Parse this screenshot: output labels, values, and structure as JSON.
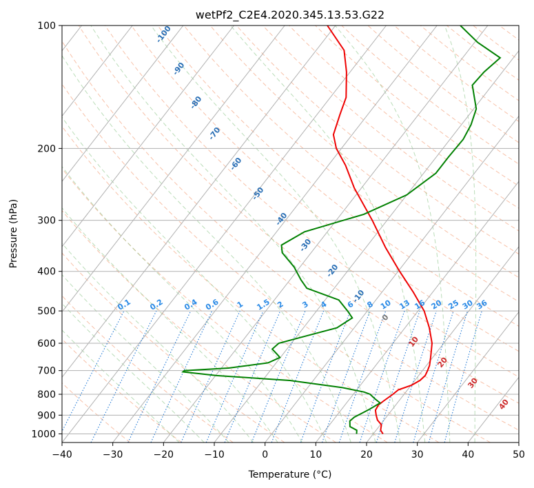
{
  "chart_data": {
    "type": "line",
    "subtype": "skew-t log-p sounding",
    "title": "wetPf2_C2E4.2020.345.13.53.G22",
    "xlabel": "Temperature (°C)",
    "ylabel": "Pressure (hPa)",
    "xlim": [
      -40,
      50
    ],
    "ylim": [
      1050,
      100
    ],
    "y_scale": "log",
    "grid": true,
    "x_ticks": [
      -40,
      -30,
      -20,
      -10,
      0,
      10,
      20,
      30,
      40,
      50
    ],
    "y_ticks": [
      100,
      200,
      300,
      400,
      500,
      600,
      700,
      800,
      900,
      1000
    ],
    "isotherm_labels": [
      -100,
      -90,
      -80,
      -70,
      -60,
      -50,
      -40,
      -30,
      -20,
      -10,
      0,
      10,
      20,
      30,
      40
    ],
    "mixing_ratio_labels": [
      "0.1",
      "0.2",
      "0.4",
      "0.6",
      "1",
      "1.5",
      "2",
      "3",
      "4",
      "6",
      "8",
      "10",
      "13",
      "16",
      "20",
      "25",
      "30",
      "36"
    ],
    "series": [
      {
        "color": "#ee0000",
        "points": [
          [
            1000,
            21.9
          ],
          [
            980,
            20.9
          ],
          [
            950,
            20.2
          ],
          [
            925,
            18.7
          ],
          [
            900,
            17.7
          ],
          [
            875,
            16.8
          ],
          [
            850,
            16.6
          ],
          [
            830,
            17.0
          ],
          [
            800,
            17.8
          ],
          [
            780,
            18.2
          ],
          [
            760,
            20.1
          ],
          [
            740,
            21.0
          ],
          [
            720,
            21.3
          ],
          [
            700,
            21.0
          ],
          [
            680,
            20.6
          ],
          [
            650,
            19.6
          ],
          [
            600,
            17.7
          ],
          [
            550,
            14.8
          ],
          [
            500,
            11.2
          ],
          [
            450,
            6.2
          ],
          [
            400,
            0.3
          ],
          [
            350,
            -6.1
          ],
          [
            300,
            -12.9
          ],
          [
            250,
            -21.4
          ],
          [
            220,
            -26.6
          ],
          [
            200,
            -31.0
          ],
          [
            185,
            -33.7
          ],
          [
            165,
            -35.5
          ],
          [
            150,
            -36.9
          ],
          [
            130,
            -40.7
          ],
          [
            115,
            -44.5
          ],
          [
            100,
            -51.6
          ]
        ]
      },
      {
        "color": "#008000",
        "points": [
          [
            1000,
            16.7
          ],
          [
            980,
            16.2
          ],
          [
            960,
            14.3
          ],
          [
            930,
            13.4
          ],
          [
            910,
            13.7
          ],
          [
            890,
            14.6
          ],
          [
            870,
            15.5
          ],
          [
            840,
            16.6
          ],
          [
            820,
            14.9
          ],
          [
            800,
            13.3
          ],
          [
            790,
            11.8
          ],
          [
            770,
            6.7
          ],
          [
            740,
            -4.6
          ],
          [
            720,
            -19.8
          ],
          [
            705,
            -27.0
          ],
          [
            700,
            -26.9
          ],
          [
            690,
            -18.6
          ],
          [
            670,
            -11.6
          ],
          [
            650,
            -10.1
          ],
          [
            640,
            -11.0
          ],
          [
            620,
            -12.9
          ],
          [
            600,
            -12.5
          ],
          [
            580,
            -9.0
          ],
          [
            550,
            -3.4
          ],
          [
            520,
            -1.9
          ],
          [
            500,
            -3.9
          ],
          [
            470,
            -7.3
          ],
          [
            440,
            -15.4
          ],
          [
            420,
            -17.8
          ],
          [
            390,
            -21.2
          ],
          [
            360,
            -25.7
          ],
          [
            345,
            -27.0
          ],
          [
            320,
            -24.5
          ],
          [
            290,
            -15.5
          ],
          [
            260,
            -10.0
          ],
          [
            230,
            -7.6
          ],
          [
            210,
            -7.6
          ],
          [
            190,
            -7.4
          ],
          [
            175,
            -8.1
          ],
          [
            160,
            -9.5
          ],
          [
            140,
            -13.9
          ],
          [
            130,
            -13.6
          ],
          [
            120,
            -12.6
          ],
          [
            110,
            -19.4
          ],
          [
            100,
            -25.4
          ]
        ]
      }
    ]
  }
}
